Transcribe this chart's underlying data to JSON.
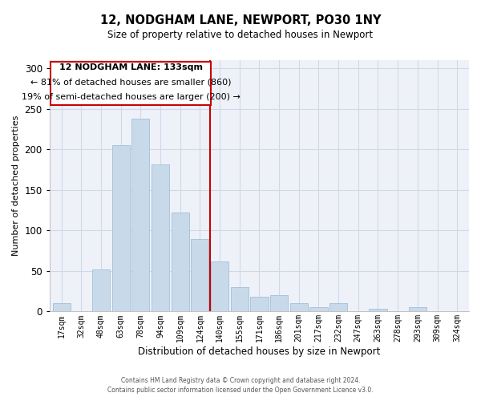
{
  "title": "12, NODGHAM LANE, NEWPORT, PO30 1NY",
  "subtitle": "Size of property relative to detached houses in Newport",
  "xlabel": "Distribution of detached houses by size in Newport",
  "ylabel": "Number of detached properties",
  "bar_color": "#c8daea",
  "bar_edge_color": "#a8c4dc",
  "categories": [
    "17sqm",
    "32sqm",
    "48sqm",
    "63sqm",
    "78sqm",
    "94sqm",
    "109sqm",
    "124sqm",
    "140sqm",
    "155sqm",
    "171sqm",
    "186sqm",
    "201sqm",
    "217sqm",
    "232sqm",
    "247sqm",
    "263sqm",
    "278sqm",
    "293sqm",
    "309sqm",
    "324sqm"
  ],
  "values": [
    10,
    0,
    52,
    205,
    238,
    181,
    122,
    89,
    62,
    30,
    18,
    20,
    10,
    5,
    10,
    0,
    3,
    0,
    5,
    0,
    0
  ],
  "property_line_idx": 8,
  "property_line_color": "#cc0000",
  "annotation_title": "12 NODGHAM LANE: 133sqm",
  "annotation_line1": "← 81% of detached houses are smaller (860)",
  "annotation_line2": "19% of semi-detached houses are larger (200) →",
  "annotation_box_color": "#cc0000",
  "ylim": [
    0,
    310
  ],
  "yticks": [
    0,
    50,
    100,
    150,
    200,
    250,
    300
  ],
  "footer1": "Contains HM Land Registry data © Crown copyright and database right 2024.",
  "footer2": "Contains public sector information licensed under the Open Government Licence v3.0.",
  "grid_color": "#d0d8e8",
  "background_color": "#eef2f8"
}
